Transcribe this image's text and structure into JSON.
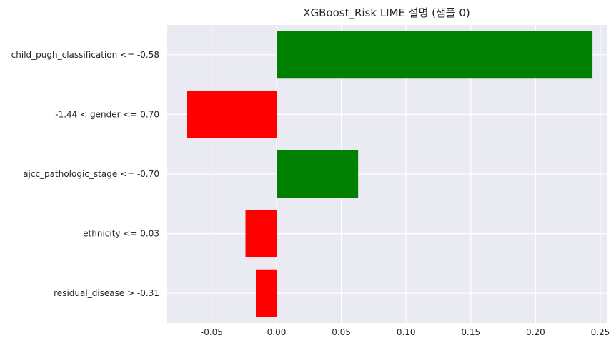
{
  "chart_data": {
    "type": "bar",
    "orientation": "horizontal",
    "title": "XGBoost_Risk LIME 설명 (샘플 0)",
    "xlabel": "",
    "ylabel": "",
    "categories": [
      "child_pugh_classification <= -0.58",
      "-1.44 < gender <= 0.70",
      "ajcc_pathologic_stage <= -0.70",
      "ethnicity <= 0.03",
      "residual_disease > -0.31"
    ],
    "values": [
      0.244,
      -0.069,
      0.063,
      -0.024,
      -0.016
    ],
    "colors": [
      "#008000",
      "#ff0000",
      "#008000",
      "#ff0000",
      "#ff0000"
    ],
    "xlim": [
      -0.085,
      0.255
    ],
    "xticks": [
      -0.05,
      0.0,
      0.05,
      0.1,
      0.15,
      0.2,
      0.25
    ],
    "xtick_labels": [
      "-0.05",
      "0.00",
      "0.05",
      "0.10",
      "0.15",
      "0.20",
      "0.25"
    ],
    "grid": true,
    "background": "#eaeaf2",
    "grid_color": "#ffffff"
  }
}
